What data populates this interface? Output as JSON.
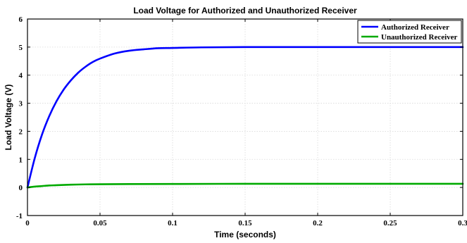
{
  "chart_data": {
    "type": "line",
    "title": "Load Voltage for Authorized and Unauthorized Receiver",
    "xlabel": "Time (seconds)",
    "ylabel": "Load Voltage (V)",
    "xlim": [
      0,
      0.3
    ],
    "ylim": [
      -1,
      6
    ],
    "xticks": [
      0,
      0.05,
      0.1,
      0.15,
      0.2,
      0.25,
      0.3
    ],
    "xtick_labels": [
      "0",
      "0.05",
      "0.1",
      "0.15",
      "0.2",
      "0.25",
      "0.3"
    ],
    "yticks": [
      -1,
      0,
      1,
      2,
      3,
      4,
      5,
      6
    ],
    "ytick_labels": [
      "-1",
      "0",
      "1",
      "2",
      "3",
      "4",
      "5",
      "6"
    ],
    "grid": true,
    "legend_position": "top-right",
    "series": [
      {
        "name": "Authorized Receiver",
        "color": "#0000ff",
        "x": [
          0,
          0.005,
          0.01,
          0.015,
          0.02,
          0.025,
          0.03,
          0.035,
          0.04,
          0.045,
          0.05,
          0.06,
          0.07,
          0.08,
          0.09,
          0.1,
          0.12,
          0.15,
          0.2,
          0.25,
          0.3
        ],
        "y": [
          0,
          1.04,
          1.88,
          2.54,
          3.07,
          3.49,
          3.82,
          4.09,
          4.3,
          4.47,
          4.59,
          4.77,
          4.87,
          4.92,
          4.96,
          4.97,
          4.99,
          5.0,
          5.0,
          5.0,
          5.0
        ]
      },
      {
        "name": "Unauthorized Receiver",
        "color": "#00aa00",
        "x": [
          0,
          0.005,
          0.01,
          0.015,
          0.02,
          0.03,
          0.04,
          0.05,
          0.07,
          0.1,
          0.15,
          0.2,
          0.25,
          0.3
        ],
        "y": [
          0,
          0.03,
          0.05,
          0.07,
          0.08,
          0.1,
          0.11,
          0.115,
          0.12,
          0.125,
          0.13,
          0.13,
          0.13,
          0.13
        ]
      }
    ]
  }
}
